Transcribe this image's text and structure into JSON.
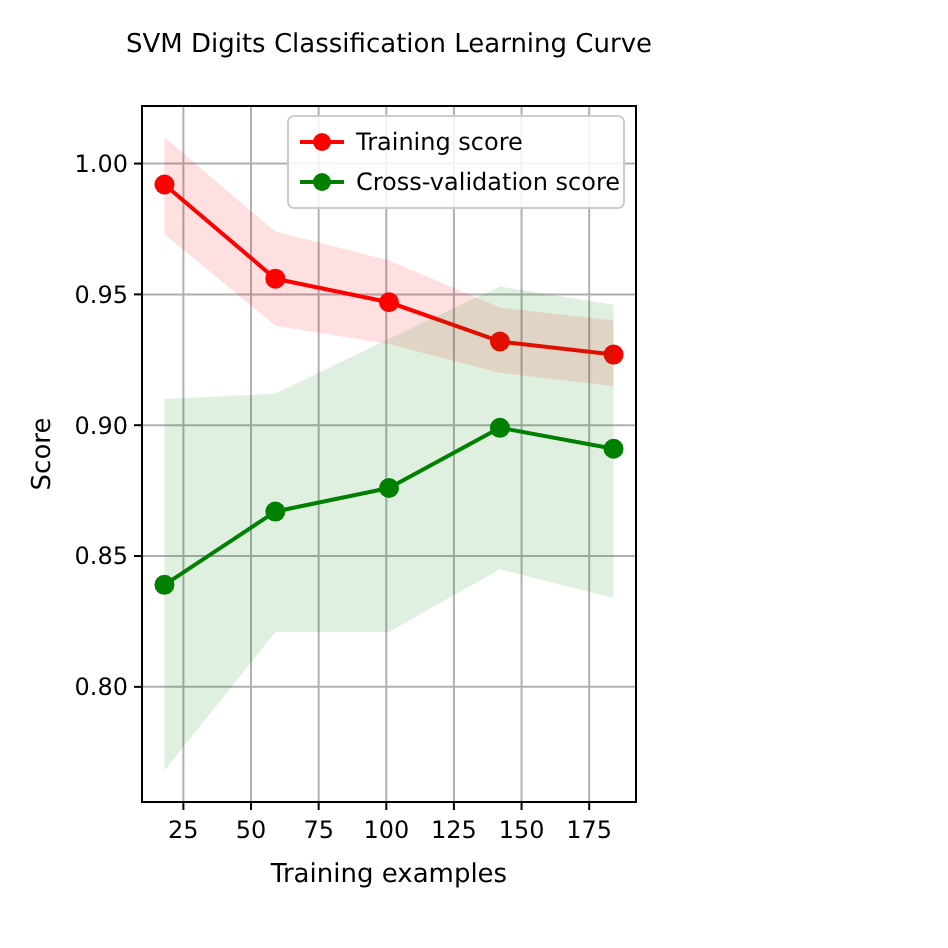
{
  "chart_data": {
    "type": "line",
    "title": "SVM Digits Classification Learning Curve",
    "xlabel": "Training examples",
    "ylabel": "Score",
    "x": [
      18,
      59,
      101,
      142,
      184
    ],
    "series": [
      {
        "name": "Training score",
        "color": "#ff0000",
        "values": [
          0.992,
          0.956,
          0.947,
          0.932,
          0.927
        ],
        "lower": [
          0.973,
          0.938,
          0.931,
          0.92,
          0.915
        ],
        "upper": [
          1.01,
          0.974,
          0.963,
          0.945,
          0.94
        ]
      },
      {
        "name": "Cross-validation score",
        "color": "#008000",
        "values": [
          0.839,
          0.867,
          0.876,
          0.899,
          0.891
        ],
        "lower": [
          0.768,
          0.821,
          0.821,
          0.845,
          0.834
        ],
        "upper": [
          0.91,
          0.912,
          0.933,
          0.953,
          0.946
        ]
      }
    ],
    "xlim": [
      9.7,
      192.3
    ],
    "ylim": [
      0.756,
      1.022
    ],
    "xticks": [
      25,
      50,
      75,
      100,
      125,
      150,
      175
    ],
    "yticks": [
      {
        "value": 0.8,
        "label": "0.80"
      },
      {
        "value": 0.85,
        "label": "0.85"
      },
      {
        "value": 0.9,
        "label": "0.90"
      },
      {
        "value": 0.95,
        "label": "0.95"
      },
      {
        "value": 1.0,
        "label": "1.00"
      }
    ],
    "grid": true,
    "legend": "top right",
    "marker": "circle",
    "line_style": "solid"
  }
}
